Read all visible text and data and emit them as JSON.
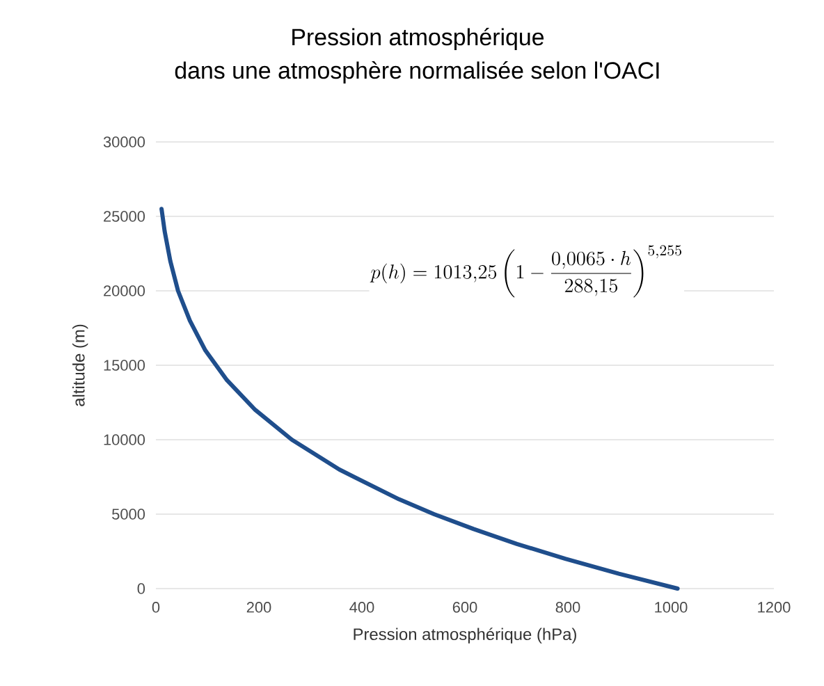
{
  "chart_data": {
    "type": "line",
    "title": "Pression atmosphérique",
    "subtitle": "dans une atmosphère normalisée selon l'OACI",
    "xlabel": "Pression atmosphérique (hPa)",
    "ylabel": "altitude (m)",
    "annotations": [
      "p(h) = 1013{,}25 \\left(1 - \\frac{0{,}0065 \\cdot h}{288{,}15}\\right)^{5{,}255}"
    ],
    "series": [
      {
        "color": "#1f4e8c",
        "x": [
          1013,
          899,
          795,
          701,
          617,
          540,
          472,
          356,
          264,
          193,
          138,
          96,
          66,
          43,
          28,
          17,
          11
        ],
        "values": [
          0,
          1000,
          2000,
          3000,
          4000,
          5000,
          6000,
          8000,
          10000,
          12000,
          14000,
          16000,
          18000,
          20000,
          22000,
          24000,
          25500
        ]
      }
    ],
    "xlim": [
      0,
      1200
    ],
    "xticks": [
      0,
      200,
      400,
      600,
      800,
      1000,
      1200
    ],
    "ylim": [
      0,
      30000
    ],
    "yticks": [
      0,
      5000,
      10000,
      15000,
      20000,
      25000,
      30000
    ],
    "grid": "y",
    "marker": "none",
    "line_style": "solid"
  }
}
